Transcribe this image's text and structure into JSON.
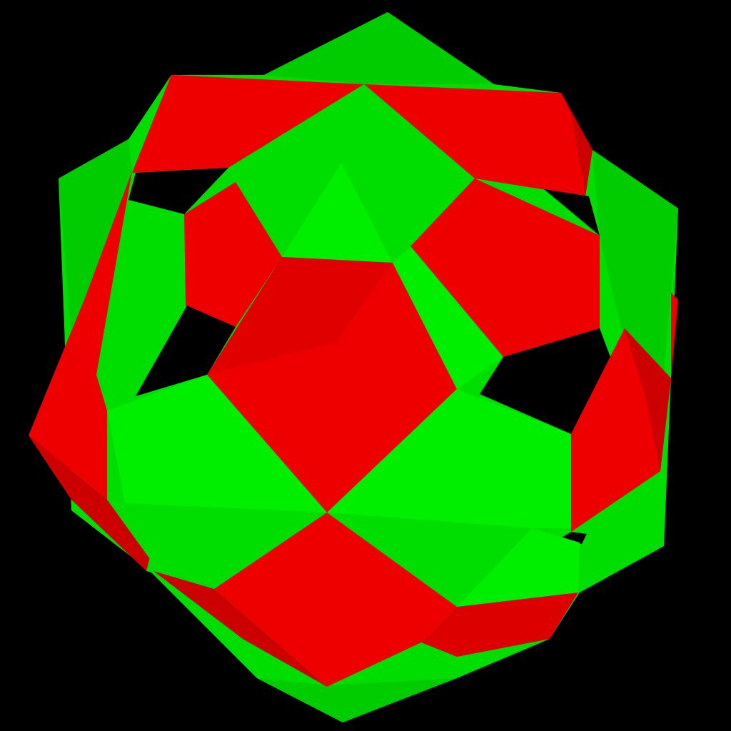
{
  "scene": {
    "background": "#000000",
    "palette": {
      "green": "#00ee00",
      "green_dark": "#00cc00",
      "green_shade": "#00dd00",
      "red": "#ee0000",
      "red_dark": "#cc0000",
      "hole": "#000000"
    }
  }
}
